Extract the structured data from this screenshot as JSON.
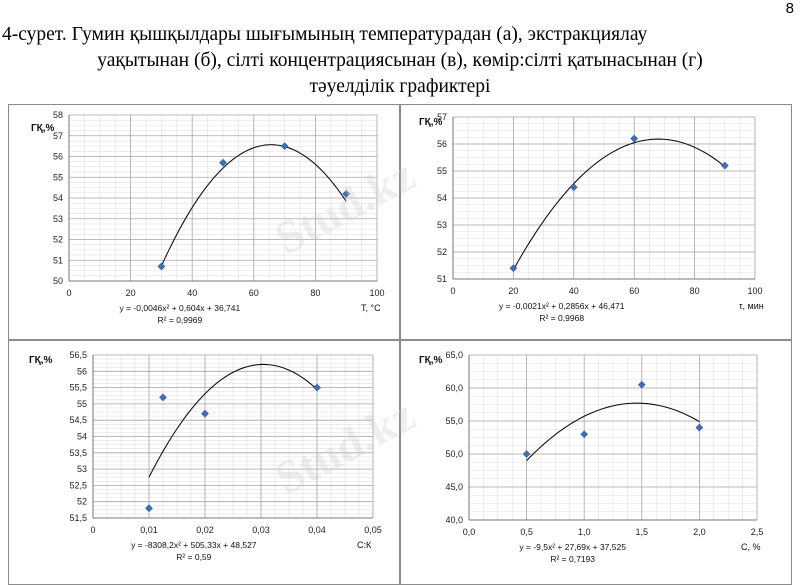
{
  "page_number": "8",
  "caption": {
    "line1": "4-сурет. Гумин қышқылдары шығымының температурадан (а), экстракциялау",
    "line2": "уақытынан (б), сілті концентрациясынан (в), көмір:сілті қатынасынан (г)",
    "line3": "тәуелділік графиктері"
  },
  "watermark_text": "Stud.kz",
  "chart_data": [
    {
      "type": "scatter",
      "ylabel": "ГҚ,%",
      "xlabel": "T, °C",
      "xlim": [
        0,
        100
      ],
      "xticks": [
        0,
        20,
        40,
        60,
        80,
        100
      ],
      "xtick_labels": [
        "0",
        "20",
        "40",
        "60",
        "80",
        "100"
      ],
      "ylim": [
        50,
        58
      ],
      "yticks": [
        50,
        51,
        52,
        53,
        54,
        55,
        56,
        57,
        58
      ],
      "ytick_labels": [
        "50",
        "51",
        "52",
        "53",
        "54",
        "55",
        "56",
        "57",
        "58"
      ],
      "x": [
        30,
        50,
        70,
        90
      ],
      "y": [
        50.7,
        55.7,
        56.5,
        54.2
      ],
      "trend": {
        "a": -0.0046,
        "b": 0.604,
        "c": 36.741,
        "x_range": [
          30,
          90
        ]
      },
      "equation": "y = -0,0046x² + 0,604x + 36,741",
      "r2": "R² = 0,9969",
      "grid": true,
      "marker_color": "#3e6fb5"
    },
    {
      "type": "scatter",
      "ylabel": "ГҚ,%",
      "xlabel": "τ, мин",
      "xlim": [
        0,
        100
      ],
      "xticks": [
        0,
        20,
        40,
        60,
        80,
        100
      ],
      "xtick_labels": [
        "0",
        "20",
        "40",
        "60",
        "80",
        "100"
      ],
      "ylim": [
        51,
        57
      ],
      "yticks": [
        51,
        52,
        53,
        54,
        55,
        56,
        57
      ],
      "ytick_labels": [
        "51",
        "52",
        "53",
        "54",
        "55",
        "56",
        "57"
      ],
      "x": [
        20,
        40,
        60,
        90
      ],
      "y": [
        51.4,
        54.4,
        56.2,
        55.2
      ],
      "trend": {
        "a": -0.0021,
        "b": 0.2856,
        "c": 46.471,
        "x_range": [
          20,
          90
        ]
      },
      "equation": "y = -0,0021x² + 0,2856x + 46,471",
      "r2": "R² = 0,9968",
      "grid": true,
      "marker_color": "#3e6fb5"
    },
    {
      "type": "scatter",
      "ylabel": "ГҚ,%",
      "xlabel": "С:К",
      "xlim": [
        0,
        0.05
      ],
      "xticks": [
        0,
        0.01,
        0.02,
        0.03,
        0.04,
        0.05
      ],
      "xtick_labels": [
        "0",
        "0,01",
        "0,02",
        "0,03",
        "0,04",
        "0,05"
      ],
      "ylim": [
        51.5,
        56.5
      ],
      "yticks": [
        51.5,
        52,
        52.5,
        53,
        53.5,
        54,
        54.5,
        55,
        55.5,
        56,
        56.5
      ],
      "ytick_labels": [
        "51,5",
        "52",
        "52,5",
        "53",
        "53,5",
        "54",
        "54,5",
        "55",
        "55,5",
        "56",
        "56,5"
      ],
      "x": [
        0.01,
        0.0125,
        0.02,
        0.04
      ],
      "y": [
        51.8,
        55.2,
        54.7,
        55.5
      ],
      "trend": {
        "a": -8308.2,
        "b": 505.33,
        "c": 48.527,
        "x_range": [
          0.01,
          0.04
        ]
      },
      "equation": "y = -8308,2x² + 505,33x + 48,527",
      "r2": "R² = 0,59",
      "grid": true,
      "marker_color": "#3e6fb5"
    },
    {
      "type": "scatter",
      "ylabel": "ГҚ,%",
      "xlabel": "C, %",
      "xlim": [
        0,
        2.5
      ],
      "xticks": [
        0,
        0.5,
        1,
        1.5,
        2,
        2.5
      ],
      "xtick_labels": [
        "0,0",
        "0,5",
        "1,0",
        "1,5",
        "2,0",
        "2,5"
      ],
      "ylim": [
        40,
        65
      ],
      "yticks": [
        40,
        45,
        50,
        55,
        60,
        65
      ],
      "ytick_labels": [
        "40,0",
        "45,0",
        "50,0",
        "55,0",
        "60,0",
        "65,0"
      ],
      "x": [
        0.5,
        1.0,
        1.5,
        2.0
      ],
      "y": [
        50.0,
        53.0,
        60.5,
        54.0
      ],
      "trend": {
        "a": -9.5,
        "b": 27.69,
        "c": 37.525,
        "x_range": [
          0.5,
          2.0
        ]
      },
      "equation": "y = -9,5x² + 27,69x + 37,525",
      "r2": "R² = 0,7193",
      "grid": true,
      "marker_color": "#3e6fb5"
    }
  ]
}
